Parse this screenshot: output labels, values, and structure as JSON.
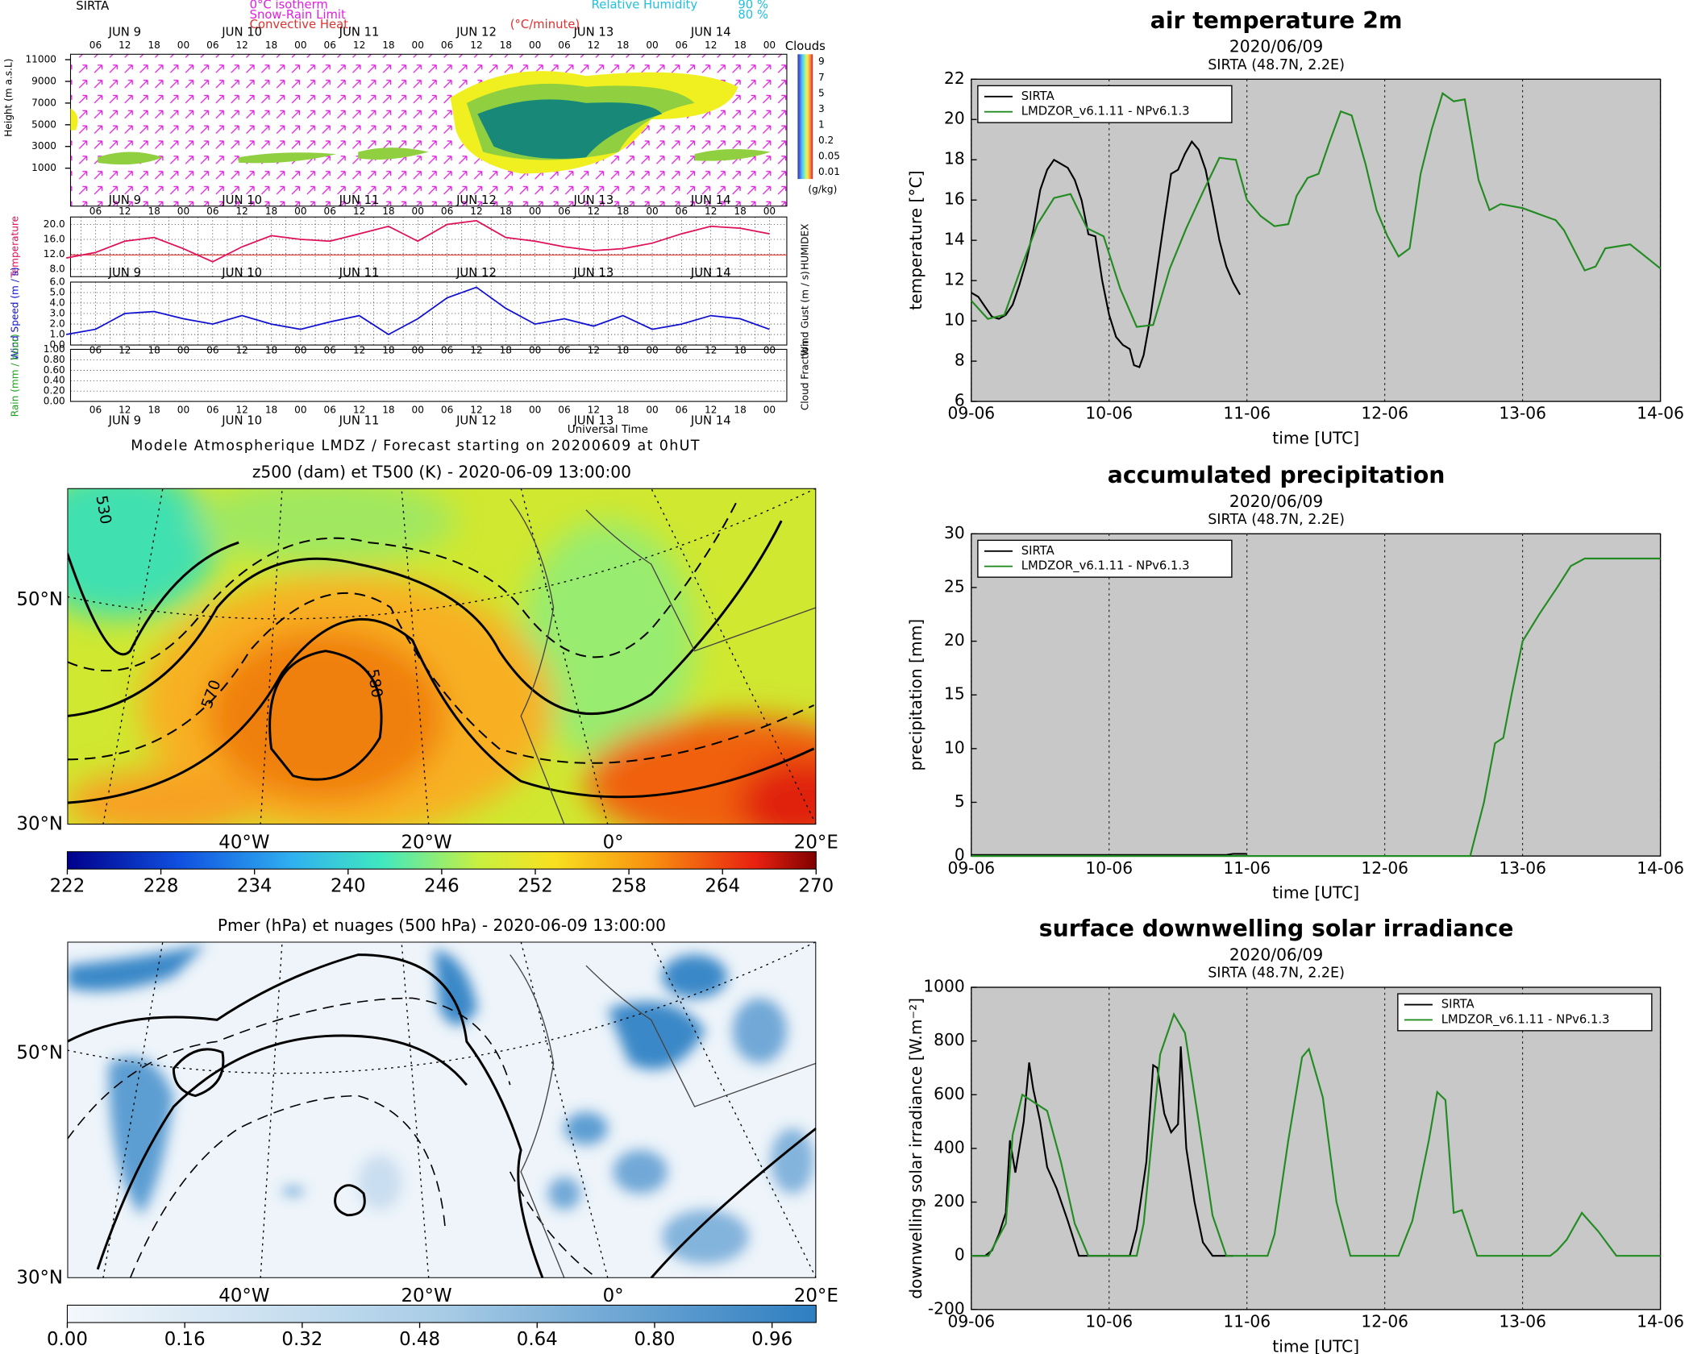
{
  "chart_data": [
    {
      "type": "meteogram",
      "site": "SIRTA",
      "footer": "Modele Atmospherique LMDZ / Forecast starting on 20200609 at 0hUT",
      "xlabel": "Universal Time",
      "legend_texts": [
        "0°C isotherm",
        "Snow-Rain Limit",
        "Convective Heat.",
        "(°C/minute)",
        "Relative Humidity",
        "90 %",
        "80 %"
      ],
      "days": [
        "JUN 9",
        "JUN 10",
        "JUN 11",
        "JUN 12",
        "JUN 13",
        "JUN 14"
      ],
      "day_x": [
        9.5,
        10.5,
        11.5,
        12.5,
        13.5,
        14.5
      ],
      "hours": [
        "06",
        "12",
        "18",
        "00"
      ],
      "xlim": [
        9,
        15.1
      ],
      "clouds_title": "Clouds",
      "clouds_unit": "(g/kg)",
      "cloud_levels": [
        "9",
        "7",
        "5",
        "3",
        "1",
        "0.2",
        "0.05",
        "0.01"
      ],
      "height_label": "Height (m a.s.L)",
      "height_ylim": [
        -2500,
        11500
      ],
      "height_ticks": [
        1000,
        3000,
        5000,
        7000,
        9000,
        11000
      ],
      "temperature": {
        "ylabel": "Temperature",
        "y2label": "HUMIDEX",
        "color": "#e0105a",
        "ylim": [
          6,
          22
        ],
        "yticks": [
          {
            "value": 8,
            "label": "8.0"
          },
          {
            "value": 12,
            "label": "12.0"
          },
          {
            "value": 16,
            "label": "16.0"
          },
          {
            "value": 20,
            "label": "20.0"
          }
        ],
        "x": [
          9.0,
          9.25,
          9.5,
          9.75,
          10.0,
          10.25,
          10.5,
          10.75,
          11.0,
          11.25,
          11.5,
          11.75,
          12.0,
          12.25,
          12.5,
          12.75,
          13.0,
          13.25,
          13.5,
          13.75,
          14.0,
          14.25,
          14.5,
          14.75,
          15.0
        ],
        "values": [
          11,
          12.5,
          15.5,
          16.5,
          13.5,
          10,
          14,
          17,
          16,
          15.5,
          17.5,
          19.5,
          15.5,
          20,
          21,
          16.5,
          15.5,
          14,
          13,
          13.5,
          15,
          17.5,
          19.5,
          19,
          17.5
        ]
      },
      "wind": {
        "ylabel": "Wind Speed (m / s)",
        "y2label": "Wind Gust (m / s)",
        "color": "#1010d0",
        "ylim": [
          0,
          6
        ],
        "yticks": [
          {
            "value": 0,
            "label": "0.0"
          },
          {
            "value": 1,
            "label": "1.0"
          },
          {
            "value": 2,
            "label": "2.0"
          },
          {
            "value": 3,
            "label": "3.0"
          },
          {
            "value": 4,
            "label": "4.0"
          },
          {
            "value": 5,
            "label": "5.0"
          },
          {
            "value": 6,
            "label": "6.0"
          }
        ],
        "x": [
          9.0,
          9.25,
          9.5,
          9.75,
          10.0,
          10.25,
          10.5,
          10.75,
          11.0,
          11.25,
          11.5,
          11.75,
          12.0,
          12.25,
          12.5,
          12.75,
          13.0,
          13.25,
          13.5,
          13.75,
          14.0,
          14.25,
          14.5,
          14.75,
          15.0
        ],
        "values": [
          1.0,
          1.5,
          3.0,
          3.2,
          2.5,
          2.0,
          2.8,
          2.0,
          1.5,
          2.2,
          2.8,
          1.0,
          2.5,
          4.5,
          5.5,
          3.5,
          2.0,
          2.5,
          1.8,
          2.8,
          1.5,
          2.0,
          2.8,
          2.5,
          1.5
        ]
      },
      "rain": {
        "ylabel": "Rain (mm / hour)",
        "y2label": "Cloud Fraction",
        "ylim": [
          0,
          1
        ],
        "yticks": [
          {
            "value": 0,
            "label": "0.00"
          },
          {
            "value": 0.2,
            "label": "0.20"
          },
          {
            "value": 0.4,
            "label": "0.40"
          },
          {
            "value": 0.6,
            "label": "0.60"
          },
          {
            "value": 0.8,
            "label": "0.80"
          },
          {
            "value": 1,
            "label": "1.00"
          }
        ]
      }
    },
    {
      "type": "map",
      "title": "z500 (dam) et T500 (K) - 2020-06-09 13:00:00",
      "cbar_lim": [
        222,
        270
      ],
      "cbar_ticks": [
        222,
        228,
        234,
        240,
        246,
        252,
        258,
        264,
        270
      ],
      "lat_labels": [
        "50°N",
        "30°N"
      ],
      "lon_labels": [
        "40°W",
        "20°W",
        "0°",
        "20°E"
      ],
      "contour_labels": [
        "530",
        "570",
        "580"
      ]
    },
    {
      "type": "map",
      "title": "Pmer (hPa) et nuages (500 hPa) - 2020-06-09 13:00:00",
      "cbar_lim": [
        0,
        1.02
      ],
      "cbar_ticks": [
        {
          "value": 0,
          "label": "0.00"
        },
        {
          "value": 0.16,
          "label": "0.16"
        },
        {
          "value": 0.32,
          "label": "0.32"
        },
        {
          "value": 0.48,
          "label": "0.48"
        },
        {
          "value": 0.64,
          "label": "0.64"
        },
        {
          "value": 0.8,
          "label": "0.80"
        },
        {
          "value": 0.96,
          "label": "0.96"
        }
      ],
      "lat_labels": [
        "50°N",
        "30°N"
      ],
      "lon_labels": [
        "40°W",
        "20°W",
        "0°",
        "20°E"
      ]
    },
    {
      "type": "line",
      "title": "air temperature 2m",
      "subtitle": "2020/06/09",
      "location": "SIRTA (48.7N, 2.2E)",
      "xlabel": "time [UTC]",
      "ylabel": "temperature [°C]",
      "xlim": [
        9,
        14
      ],
      "ylim": [
        6,
        22
      ],
      "grid": true,
      "legend": "upper left",
      "xticks": [
        {
          "value": 9,
          "label": "09-06"
        },
        {
          "value": 10,
          "label": "10-06"
        },
        {
          "value": 11,
          "label": "11-06"
        },
        {
          "value": 12,
          "label": "12-06"
        },
        {
          "value": 13,
          "label": "13-06"
        },
        {
          "value": 14,
          "label": "14-06"
        }
      ],
      "yticks": [
        6,
        8,
        10,
        12,
        14,
        16,
        18,
        20,
        22
      ],
      "series": [
        {
          "name": "SIRTA",
          "color": "#000000",
          "x": [
            9.0,
            9.05,
            9.1,
            9.15,
            9.2,
            9.25,
            9.3,
            9.35,
            9.4,
            9.45,
            9.5,
            9.55,
            9.6,
            9.65,
            9.7,
            9.75,
            9.8,
            9.85,
            9.9,
            9.95,
            10.0,
            10.05,
            10.1,
            10.15,
            10.18,
            10.22,
            10.25,
            10.3,
            10.35,
            10.4,
            10.45,
            10.5,
            10.55,
            10.6,
            10.65,
            10.7,
            10.75,
            10.8,
            10.85,
            10.9,
            10.95
          ],
          "values": [
            11.4,
            11.2,
            10.7,
            10.2,
            10.1,
            10.3,
            10.8,
            11.8,
            13.0,
            14.5,
            16.5,
            17.5,
            18.0,
            17.8,
            17.6,
            17.0,
            16.0,
            14.3,
            14.2,
            12.0,
            10.3,
            9.2,
            8.8,
            8.6,
            7.8,
            7.7,
            8.3,
            10.2,
            12.6,
            15.0,
            17.3,
            17.5,
            18.3,
            18.9,
            18.5,
            17.5,
            15.8,
            14.0,
            12.7,
            11.9,
            11.3
          ]
        },
        {
          "name": "LMDZOR_v6.1.11 - NPv6.1.3",
          "color": "#228b22",
          "x": [
            9.0,
            9.12,
            9.24,
            9.36,
            9.48,
            9.6,
            9.72,
            9.84,
            9.96,
            10.08,
            10.2,
            10.32,
            10.44,
            10.56,
            10.68,
            10.8,
            10.92,
            11.0,
            11.1,
            11.2,
            11.3,
            11.36,
            11.44,
            11.52,
            11.6,
            11.68,
            11.76,
            11.86,
            11.94,
            12.02,
            12.1,
            12.18,
            12.26,
            12.34,
            12.42,
            12.5,
            12.58,
            12.68,
            12.76,
            12.84,
            13.0,
            13.12,
            13.24,
            13.3,
            13.45,
            13.53,
            13.6,
            13.78,
            14.0
          ],
          "values": [
            11.0,
            10.1,
            10.3,
            12.6,
            14.8,
            16.1,
            16.3,
            14.6,
            14.2,
            11.6,
            9.7,
            9.8,
            12.6,
            14.6,
            16.4,
            18.1,
            18.0,
            16.0,
            15.2,
            14.7,
            14.8,
            16.2,
            17.1,
            17.3,
            18.9,
            20.4,
            20.2,
            17.8,
            15.5,
            14.2,
            13.2,
            13.6,
            17.3,
            19.5,
            21.3,
            20.9,
            21.0,
            17.0,
            15.5,
            15.8,
            15.6,
            15.3,
            15.0,
            14.5,
            12.5,
            12.7,
            13.6,
            13.8,
            12.6
          ]
        }
      ]
    },
    {
      "type": "line",
      "title": "accumulated precipitation",
      "subtitle": "2020/06/09",
      "location": "SIRTA (48.7N, 2.2E)",
      "xlabel": "time [UTC]",
      "ylabel": "precipitation [mm]",
      "xlim": [
        9,
        14
      ],
      "ylim": [
        0,
        30
      ],
      "grid": true,
      "legend": "upper left",
      "xticks": [
        {
          "value": 9,
          "label": "09-06"
        },
        {
          "value": 10,
          "label": "10-06"
        },
        {
          "value": 11,
          "label": "11-06"
        },
        {
          "value": 12,
          "label": "12-06"
        },
        {
          "value": 13,
          "label": "13-06"
        },
        {
          "value": 14,
          "label": "14-06"
        }
      ],
      "yticks": [
        0,
        5,
        10,
        15,
        20,
        25,
        30
      ],
      "series": [
        {
          "name": "SIRTA",
          "color": "#000000",
          "x": [
            9.0,
            10.0,
            10.85,
            10.9,
            11.0
          ],
          "values": [
            0.1,
            0.1,
            0.1,
            0.2,
            0.2
          ]
        },
        {
          "name": "LMDZOR_v6.1.11 - NPv6.1.3",
          "color": "#228b22",
          "x": [
            9.0,
            12.62,
            12.72,
            12.8,
            12.86,
            12.92,
            13.0,
            13.12,
            13.25,
            13.35,
            13.45,
            14.0
          ],
          "values": [
            0,
            0,
            5,
            10.5,
            11,
            15,
            20,
            22.5,
            25,
            27,
            27.7,
            27.7
          ]
        }
      ]
    },
    {
      "type": "line",
      "title": "surface downwelling solar irradiance",
      "subtitle": "2020/06/09",
      "location": "SIRTA (48.7N, 2.2E)",
      "xlabel": "time [UTC]",
      "ylabel": "downwelling solar irradiance [W.m⁻²]",
      "xlim": [
        9,
        14
      ],
      "ylim": [
        -200,
        1000
      ],
      "grid": true,
      "legend": "upper right",
      "xticks": [
        {
          "value": 9,
          "label": "09-06"
        },
        {
          "value": 10,
          "label": "10-06"
        },
        {
          "value": 11,
          "label": "11-06"
        },
        {
          "value": 12,
          "label": "12-06"
        },
        {
          "value": 13,
          "label": "13-06"
        },
        {
          "value": 14,
          "label": "14-06"
        }
      ],
      "yticks": [
        -200,
        0,
        200,
        400,
        600,
        800,
        1000
      ],
      "series": [
        {
          "name": "SIRTA",
          "color": "#000000",
          "x": [
            9.0,
            9.1,
            9.15,
            9.2,
            9.25,
            9.28,
            9.32,
            9.38,
            9.42,
            9.45,
            9.5,
            9.55,
            9.62,
            9.7,
            9.78,
            9.85,
            10.0,
            10.15,
            10.2,
            10.27,
            10.32,
            10.35,
            10.4,
            10.45,
            10.5,
            10.52,
            10.56,
            10.62,
            10.68,
            10.75,
            10.9
          ],
          "values": [
            0,
            0,
            20,
            80,
            160,
            430,
            310,
            500,
            720,
            620,
            500,
            330,
            250,
            130,
            0,
            0,
            0,
            0,
            100,
            350,
            710,
            700,
            530,
            460,
            490,
            780,
            400,
            200,
            50,
            0,
            0
          ]
        },
        {
          "name": "LMDZOR_v6.1.11 - NPv6.1.3",
          "color": "#228b22",
          "x": [
            9.0,
            9.125,
            9.25,
            9.3,
            9.37,
            9.55,
            9.65,
            9.75,
            9.85,
            10.0,
            10.2,
            10.25,
            10.37,
            10.47,
            10.55,
            10.65,
            10.75,
            10.85,
            11.0,
            11.15,
            11.2,
            11.3,
            11.4,
            11.45,
            11.55,
            11.65,
            11.75,
            12.1,
            12.2,
            12.32,
            12.38,
            12.44,
            12.5,
            12.56,
            12.67,
            13.2,
            13.25,
            13.32,
            13.43,
            13.55,
            13.68,
            14.0
          ],
          "values": [
            0,
            0,
            120,
            450,
            600,
            540,
            350,
            120,
            0,
            0,
            0,
            120,
            750,
            900,
            830,
            500,
            150,
            0,
            0,
            0,
            80,
            430,
            740,
            770,
            590,
            200,
            0,
            0,
            130,
            430,
            610,
            580,
            160,
            170,
            0,
            0,
            20,
            60,
            160,
            90,
            0,
            0
          ]
        }
      ]
    }
  ]
}
